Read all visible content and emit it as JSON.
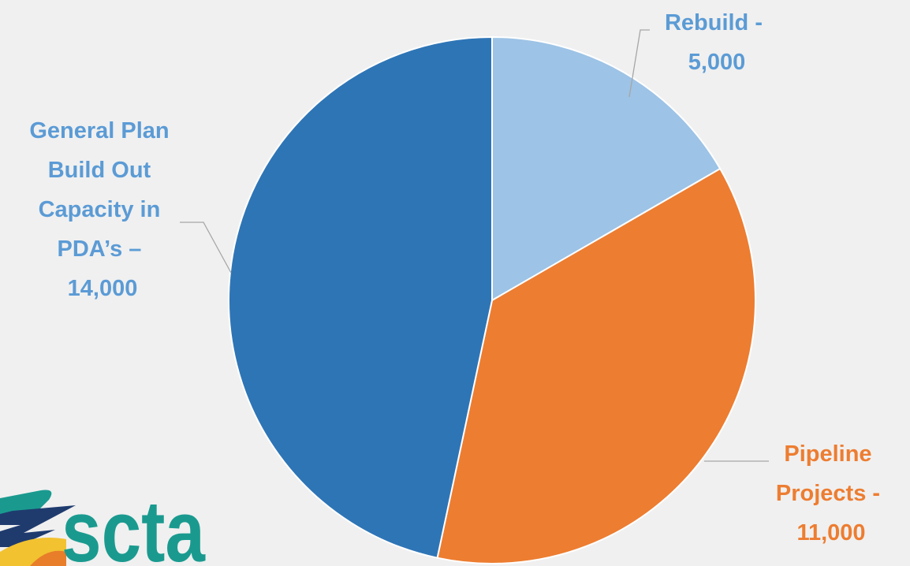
{
  "chart_data": {
    "type": "pie",
    "title": "",
    "slices": [
      {
        "label": "Rebuild",
        "value": 5000,
        "color": "#9dc3e6"
      },
      {
        "label": "Pipeline Projects",
        "value": 11000,
        "color": "#ed7d31"
      },
      {
        "label": "General Plan Build Out Capacity in PDA's",
        "value": 14000,
        "color": "#2e75b6"
      }
    ],
    "start_angle": "12 o'clock",
    "direction": "clockwise",
    "legend": "none"
  },
  "labels": {
    "rebuild": [
      "Rebuild -",
      "5,000"
    ],
    "pipeline": [
      "Pipeline",
      "Projects -",
      "11,000"
    ],
    "general_plan": [
      "General Plan",
      "Build Out",
      "Capacity in",
      "PDA’s –",
      "14,000"
    ]
  },
  "label_colors": {
    "rebuild": "#5b9bd5",
    "pipeline": "#ed7d31",
    "general_plan": "#5b9bd5"
  },
  "logo": {
    "text": "scta",
    "colors": {
      "teal": "#1a9a8f",
      "navy": "#1f3b6e",
      "yellow": "#f2c230",
      "orange": "#e87d2a"
    }
  }
}
